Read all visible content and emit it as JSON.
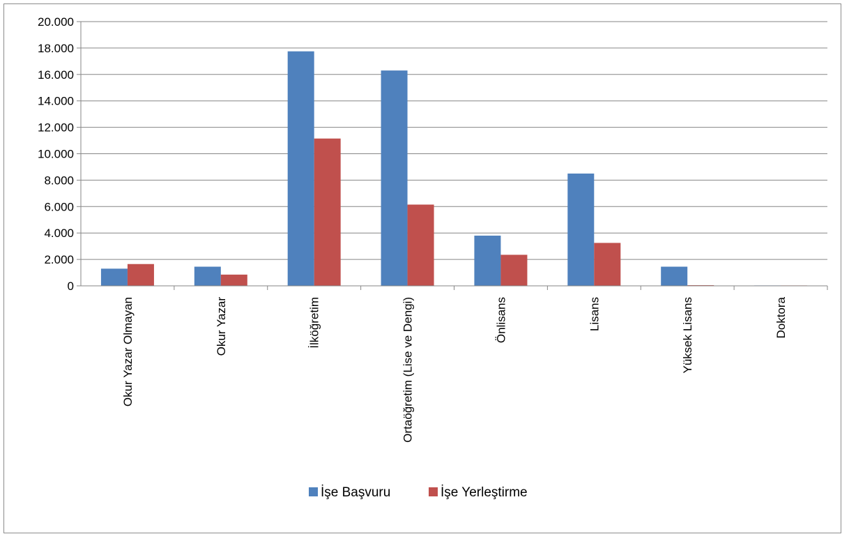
{
  "chart_data": {
    "type": "bar",
    "title": "",
    "xlabel": "",
    "ylabel": "",
    "ylim": [
      0,
      20000
    ],
    "yticks": [
      "0",
      "2.000",
      "4.000",
      "6.000",
      "8.000",
      "10.000",
      "12.000",
      "14.000",
      "16.000",
      "18.000",
      "20.000"
    ],
    "grid": true,
    "legend_position": "bottom",
    "categories": [
      "Okur Yazar Olmayan",
      "Okur Yazar",
      "İlköğretim",
      "Ortaöğretim (Lise ve Dengi)",
      "Önlisans",
      "Lisans",
      "Yüksek Lisans",
      "Doktora"
    ],
    "series": [
      {
        "name": "İşe Başvuru",
        "color": "#4f81bd",
        "values": [
          1300,
          1450,
          17750,
          16300,
          3800,
          8500,
          1450,
          30
        ]
      },
      {
        "name": "İşe Yerleştirme",
        "color": "#c0504d",
        "values": [
          1650,
          850,
          11150,
          6150,
          2350,
          3250,
          50,
          5
        ]
      }
    ]
  }
}
